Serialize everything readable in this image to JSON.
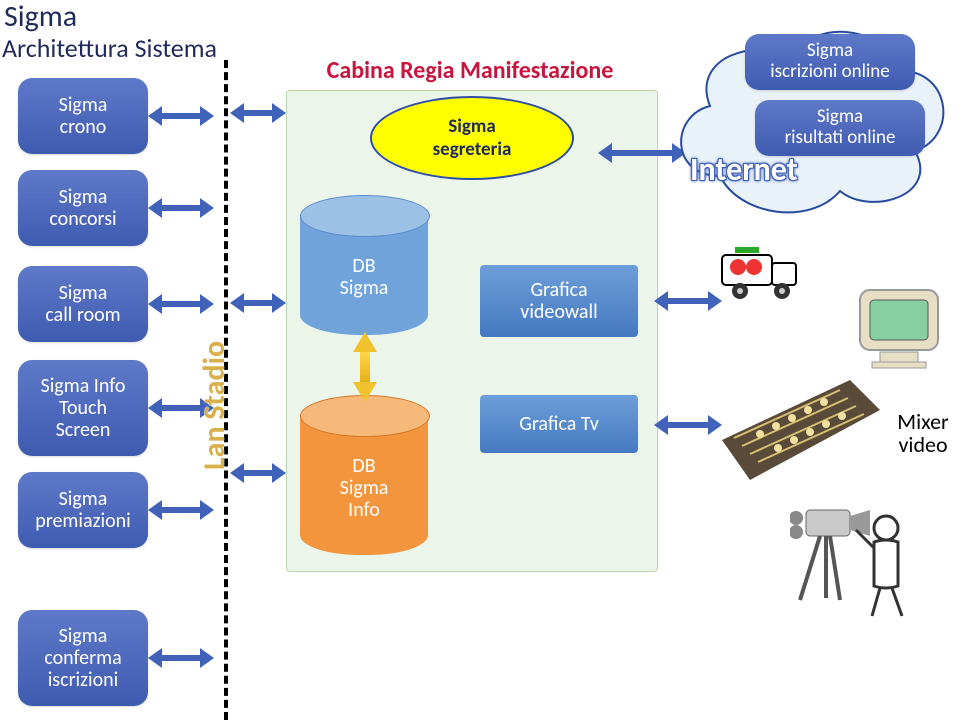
{
  "title": "Sigma",
  "subtitle": "Architettura Sistema",
  "left_pills": [
    {
      "label": "Sigma\ncrono"
    },
    {
      "label": "Sigma\nconcorsi"
    },
    {
      "label": "Sigma\ncall room"
    },
    {
      "label": "Sigma Info\nTouch\nScreen"
    },
    {
      "label": "Sigma\npremiazioni"
    },
    {
      "label": "Sigma\nconferma\niscrizioni"
    }
  ],
  "lan_label": "Lan Stadio",
  "cabina": {
    "title": "Cabina Regia Manifestazione",
    "segreteria": "Sigma\nsegreteria",
    "db_sigma": "DB\nSigma",
    "db_sigma_info": "DB\nSigma\nInfo",
    "videowall": "Grafica\nvideowall",
    "graficatv": "Grafica Tv",
    "colors": {
      "bg": "#ecf5ea",
      "title": "#c8153e",
      "ellipse_fill": "#ffff00",
      "ellipse_border": "#2e4ea8",
      "db_sigma_fill": "#6fa3da",
      "db_info_fill": "#f2953c",
      "box_fill": "#5a8ccd"
    }
  },
  "cloud": {
    "internet": "Internet",
    "iscrizioni": "Sigma\niscrizioni online",
    "risultati": "Sigma\nrisultati online",
    "fill": "#e9f2f9",
    "stroke": "#274b9e"
  },
  "mixer_label": "Mixer\nvideo",
  "arrow_color": "#4062b8",
  "dash_color": "#000000",
  "yellow_arrow": "#f1c22d"
}
